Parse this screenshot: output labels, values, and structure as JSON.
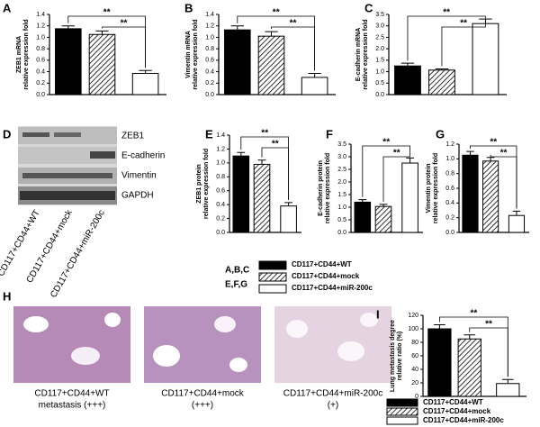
{
  "chart_data": [
    {
      "type": "bar",
      "panel": "A",
      "ylabel": [
        "ZEB1 mRNA",
        "relative expression fold"
      ],
      "values": [
        1.15,
        1.05,
        0.37
      ],
      "errors": [
        0.05,
        0.06,
        0.05
      ],
      "fills": [
        "#000000",
        "hatch",
        "#ffffff"
      ],
      "ylim": [
        0,
        1.4
      ],
      "yticks": [
        {
          "value": 0,
          "label": "0.0"
        },
        0.2,
        0.4,
        0.6,
        0.8,
        {
          "value": 1,
          "label": "1.0"
        },
        1.2,
        1.4
      ],
      "brackets": [
        {
          "from": 0,
          "to": 2,
          "label": "**"
        },
        {
          "from": 1,
          "to": 2,
          "label": "**"
        }
      ]
    },
    {
      "type": "bar",
      "panel": "B",
      "ylabel": [
        "Vimentin mRNA",
        "relative expression fold"
      ],
      "values": [
        1.13,
        1.02,
        0.3
      ],
      "errors": [
        0.07,
        0.08,
        0.07
      ],
      "fills": [
        "#000000",
        "hatch",
        "#ffffff"
      ],
      "ylim": [
        0,
        1.4
      ],
      "yticks": [
        {
          "value": 0,
          "label": "0.0"
        },
        0.2,
        0.4,
        0.6,
        0.8,
        {
          "value": 1,
          "label": "1.0"
        },
        1.2,
        1.4
      ],
      "brackets": [
        {
          "from": 0,
          "to": 2,
          "label": "**"
        },
        {
          "from": 1,
          "to": 2,
          "label": "**"
        }
      ]
    },
    {
      "type": "bar",
      "panel": "C",
      "ylabel": [
        "E-cadherin mRNA",
        "relative expression fold"
      ],
      "values": [
        1.25,
        1.07,
        3.1
      ],
      "errors": [
        0.12,
        0.05,
        0.2
      ],
      "fills": [
        "#000000",
        "hatch",
        "#ffffff"
      ],
      "ylim": [
        0,
        3.5
      ],
      "yticks": [
        {
          "value": 0,
          "label": "0.0"
        },
        0.5,
        {
          "value": 1,
          "label": "1.0"
        },
        1.5,
        {
          "value": 2,
          "label": "2.0"
        },
        2.5,
        {
          "value": 3,
          "label": "3.0"
        },
        3.5
      ],
      "brackets": [
        {
          "from": 0,
          "to": 2,
          "label": "**"
        },
        {
          "from": 1,
          "to": 2,
          "label": "**"
        }
      ]
    },
    {
      "type": "bar",
      "panel": "E",
      "ylabel": [
        "ZEB1 protein",
        "relative expression fold"
      ],
      "values": [
        1.1,
        0.98,
        0.38
      ],
      "errors": [
        0.05,
        0.06,
        0.05
      ],
      "fills": [
        "#000000",
        "hatch",
        "#ffffff"
      ],
      "ylim": [
        0,
        1.4
      ],
      "yticks": [
        {
          "value": 0,
          "label": "0.0"
        },
        0.2,
        0.4,
        0.6,
        0.8,
        {
          "value": 1,
          "label": "1.0"
        },
        1.2,
        1.4
      ],
      "brackets": [
        {
          "from": 0,
          "to": 2,
          "label": "**"
        },
        {
          "from": 1,
          "to": 2,
          "label": "**"
        }
      ]
    },
    {
      "type": "bar",
      "panel": "F",
      "ylabel": [
        "E-cadherin protein",
        "relative expression fold"
      ],
      "values": [
        1.2,
        1.03,
        2.75
      ],
      "errors": [
        0.1,
        0.08,
        0.2
      ],
      "fills": [
        "#000000",
        "hatch",
        "#ffffff"
      ],
      "ylim": [
        0,
        3.5
      ],
      "yticks": [
        {
          "value": 0,
          "label": "0.0"
        },
        0.5,
        {
          "value": 1,
          "label": "1.0"
        },
        1.5,
        {
          "value": 2,
          "label": "2.0"
        },
        2.5,
        {
          "value": 3,
          "label": "3.0"
        },
        3.5
      ],
      "brackets": [
        {
          "from": 0,
          "to": 2,
          "label": "**"
        },
        {
          "from": 1,
          "to": 2,
          "label": "**"
        }
      ]
    },
    {
      "type": "bar",
      "panel": "G",
      "ylabel": [
        "Vimentin protein",
        "relative expression fold"
      ],
      "values": [
        1.05,
        0.97,
        0.23
      ],
      "errors": [
        0.05,
        0.05,
        0.06
      ],
      "fills": [
        "#000000",
        "hatch",
        "#ffffff"
      ],
      "ylim": [
        0,
        1.2
      ],
      "yticks": [
        {
          "value": 0,
          "label": "0.0"
        },
        0.2,
        0.4,
        0.6,
        0.8,
        {
          "value": 1,
          "label": "1.0"
        },
        1.2
      ],
      "brackets": [
        {
          "from": 0,
          "to": 2,
          "label": "**"
        },
        {
          "from": 1,
          "to": 2,
          "label": "**"
        }
      ]
    },
    {
      "type": "bar",
      "panel": "I",
      "ylabel": [
        "Lung metastasis degree",
        "relative ratio (%)"
      ],
      "values": [
        100,
        85,
        19
      ],
      "errors": [
        6,
        6,
        6
      ],
      "fills": [
        "#000000",
        "hatch",
        "#ffffff"
      ],
      "ylim": [
        0,
        120
      ],
      "yticks": [
        0,
        20,
        40,
        60,
        80,
        100,
        120
      ],
      "brackets": [
        {
          "from": 0,
          "to": 2,
          "label": "**"
        },
        {
          "from": 1,
          "to": 2,
          "label": "**"
        }
      ],
      "legend": [
        "CD117+CD44+WT",
        "CD117+CD44+mock",
        "CD117+CD44+miR-200c"
      ]
    }
  ],
  "legend": {
    "groups": [
      "A,B,C",
      "E,F,G"
    ],
    "labels": [
      "CD117+CD44+WT",
      "CD117+CD44+mock",
      "CD117+CD44+miR-200c"
    ]
  },
  "blot": {
    "panel": "D",
    "bands": [
      "ZEB1",
      "E-cadherin",
      "Vimentin",
      "GAPDH"
    ],
    "lanes": [
      "CD117+CD44+WT",
      "CD117+CD44+mock",
      "CD117+CD44+miR-200c"
    ]
  },
  "histology": {
    "panel": "H",
    "captions": [
      [
        "CD117+CD44+WT",
        "metastasis (+++)"
      ],
      [
        "CD117+CD44+mock",
        "(+++)"
      ],
      [
        "CD117+CD44+miR-200c",
        "(+)"
      ]
    ]
  }
}
